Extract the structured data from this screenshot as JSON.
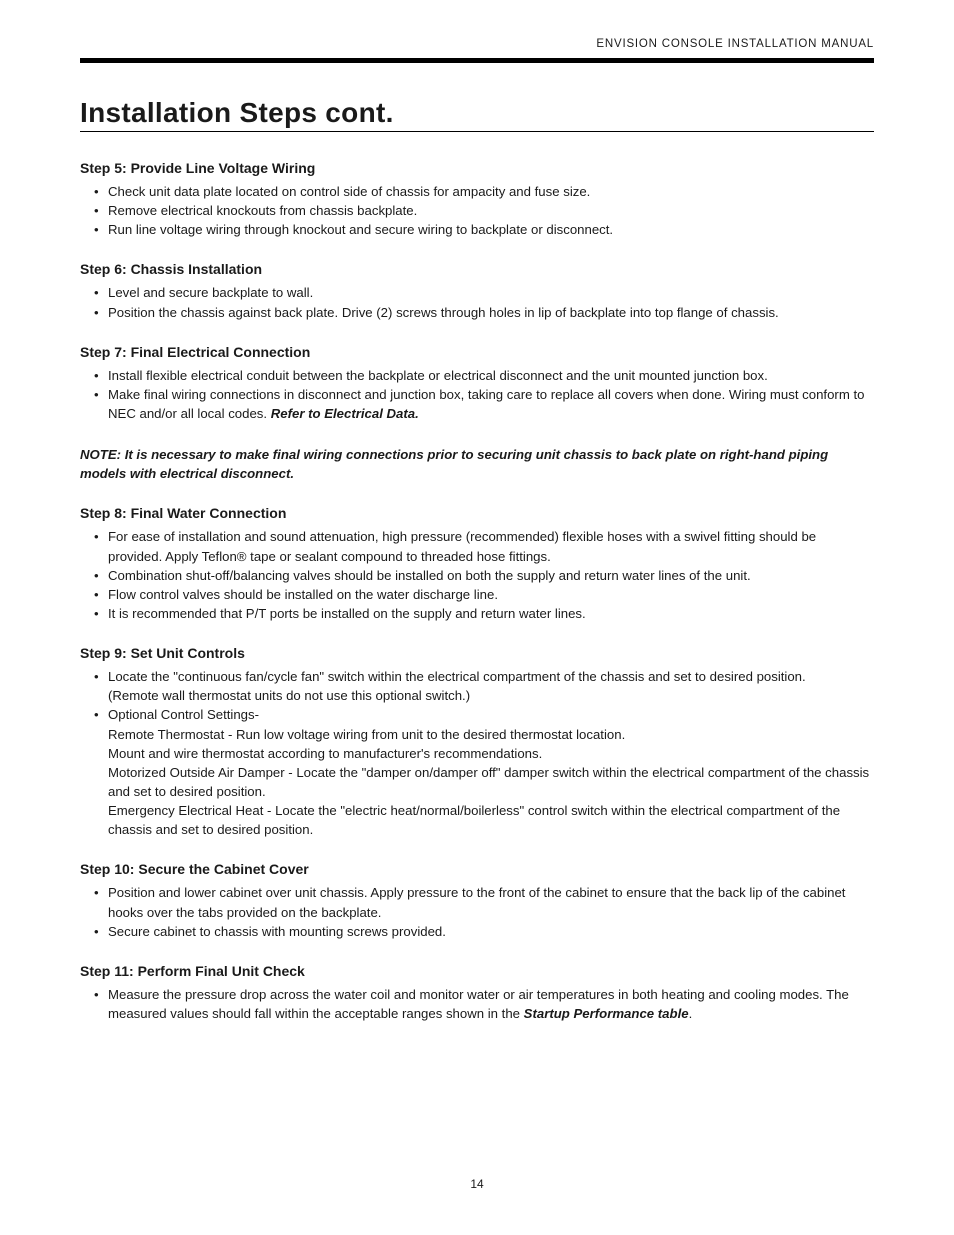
{
  "header": {
    "running_title": "ENVISION CONSOLE INSTALLATION MANUAL"
  },
  "title": "Installation Steps cont.",
  "steps": [
    {
      "heading": "Step 5: Provide Line Voltage Wiring",
      "bullets": [
        "Check unit data plate located on control side of chassis for ampacity and fuse size.",
        "Remove electrical knockouts from chassis backplate.",
        "Run line voltage wiring through knockout and secure wiring to backplate or disconnect."
      ]
    },
    {
      "heading": "Step 6: Chassis Installation",
      "bullets": [
        "Level and secure backplate to wall.",
        "Position the chassis against back plate. Drive (2) screws through holes in lip of backplate into top flange of chassis."
      ]
    },
    {
      "heading": "Step 7: Final Electrical Connection",
      "bullets": [
        "Install flexible electrical conduit between the backplate or electrical disconnect and the unit mounted junction box."
      ],
      "bullet_with_ref": {
        "text": "Make final wiring connections in disconnect and junction box, taking care to replace all covers when done. Wiring must conform to NEC and/or all local codes. ",
        "ref": "Refer to Electrical Data."
      }
    }
  ],
  "note": "NOTE: It is necessary to make final wiring connections prior to securing unit chassis to back plate on right-hand piping models with electrical disconnect.",
  "steps2": [
    {
      "heading": "Step 8: Final Water Connection",
      "bullets": [
        "For ease of installation and sound attenuation, high pressure (recommended) flexible hoses with a swivel fitting should be provided. Apply Teflon® tape or sealant compound to threaded hose fittings.",
        "Combination shut-off/balancing valves should be installed on both the supply and return water lines of the unit.",
        "Flow control valves should be installed on the water discharge line.",
        "It is recommended that P/T ports be installed on the supply and return water lines."
      ]
    }
  ],
  "step9": {
    "heading": "Step 9: Set Unit Controls",
    "bullet1": "Locate the \"continuous fan/cycle fan\" switch within the electrical compartment of the chassis and set to desired position.",
    "bullet1_sub": "(Remote wall thermostat units do not use this optional switch.)",
    "bullet2": "Optional Control Settings-",
    "sub_lines": [
      "Remote Thermostat - Run low voltage wiring from unit to the desired thermostat location.",
      "Mount and wire thermostat according to manufacturer's recommendations.",
      "Motorized Outside Air Damper - Locate the \"damper on/damper off\" damper switch within the electrical compartment of the chassis and set to desired position.",
      "Emergency Electrical Heat - Locate the \"electric heat/normal/boilerless\" control switch within the electrical compartment of the chassis and set to desired position."
    ]
  },
  "steps3": [
    {
      "heading": "Step 10: Secure the Cabinet Cover",
      "bullets": [
        "Position and lower cabinet over unit chassis. Apply pressure to the front of the cabinet to ensure that the back lip of the cabinet hooks over the tabs provided on the backplate.",
        "Secure cabinet to chassis with mounting screws provided."
      ]
    }
  ],
  "step11": {
    "heading": "Step 11: Perform Final Unit Check",
    "bullet_text": "Measure the pressure drop across the water coil and monitor water or air temperatures in both heating and cooling modes. The measured values should fall within the acceptable ranges shown in the ",
    "bullet_ref": "Startup Performance table",
    "bullet_end": "."
  },
  "page_number": "14"
}
